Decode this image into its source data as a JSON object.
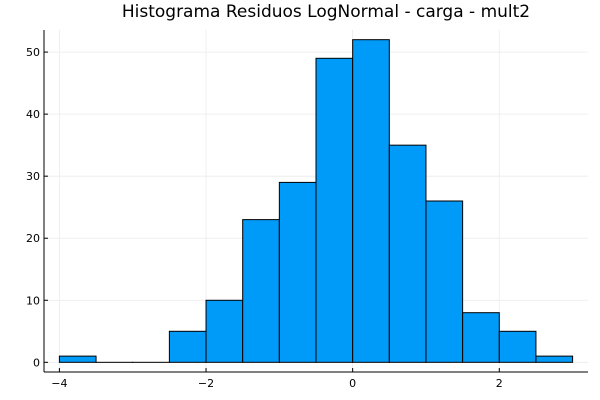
{
  "chart_data": {
    "type": "bar",
    "title": "Histograma Residuos LogNormal - carga - mult2",
    "xlabel": "",
    "ylabel": "",
    "bin_edges": [
      -4,
      -3.5,
      -3,
      -2.5,
      -2,
      -1.5,
      -1,
      -0.5,
      0,
      0.5,
      1,
      1.5,
      2,
      2.5,
      3
    ],
    "values": [
      1,
      0,
      0,
      5,
      10,
      23,
      29,
      49,
      52,
      35,
      26,
      8,
      5,
      1
    ],
    "xlim": [
      -4.21,
      3.21
    ],
    "ylim": [
      -1.56,
      53.56
    ],
    "x_ticks": [
      -4,
      -2,
      0,
      2
    ],
    "y_ticks": [
      0,
      10,
      20,
      30,
      40,
      50
    ],
    "grid": true,
    "legend": "none",
    "colors": {
      "bar_fill": "#009af9",
      "bar_stroke": "#000000",
      "grid": "#ebebeb",
      "axis": "#000000"
    }
  }
}
